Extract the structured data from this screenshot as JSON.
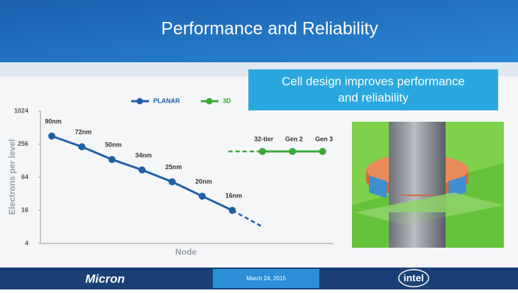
{
  "slide": {
    "title": "Performance and Reliability",
    "callout": [
      "Cell design improves performance",
      "and reliability"
    ],
    "footer": {
      "left_logo": "Micron",
      "date": "March 24, 2015",
      "right_logo": "intel"
    }
  },
  "chart_data": {
    "type": "line",
    "y_label": "Electrons per level",
    "x_label": "Node",
    "log_scale": true,
    "ylim": [
      4,
      1024
    ],
    "yticks": [
      4,
      16,
      64,
      256,
      1024
    ],
    "legend": "top",
    "categories": [
      null,
      null,
      null,
      null,
      null,
      null,
      null,
      null,
      null,
      null
    ],
    "series": [
      {
        "name": "PLANAR",
        "color": "#1f5fa8",
        "values": [
          360,
          230,
          135,
          87,
          53,
          29,
          16,
          null,
          null,
          null
        ],
        "labels": [
          "90nm",
          "72nm",
          "50nm",
          "34nm",
          "25nm",
          "20nm",
          "16nm",
          null,
          null,
          null
        ]
      },
      {
        "name": "3D",
        "color": "#3aaa35",
        "values": [
          null,
          null,
          null,
          null,
          null,
          null,
          null,
          189,
          189,
          189
        ],
        "labels": [
          null,
          null,
          null,
          null,
          null,
          null,
          null,
          "32-tier",
          "Gen 2",
          "Gen 3"
        ]
      }
    ]
  }
}
